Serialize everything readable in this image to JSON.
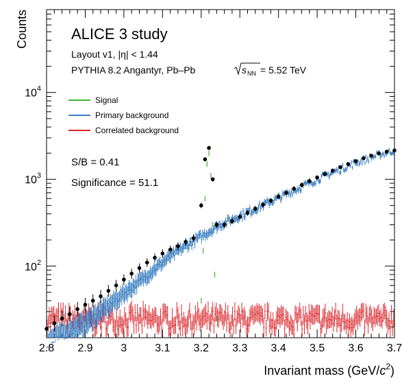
{
  "chart_data": {
    "type": "scatter",
    "x_axis": {
      "title_pre": "Invariant mass (GeV/",
      "title_var": "c",
      "title_exp": "2",
      "title_post": ")",
      "range": [
        2.8,
        3.7
      ],
      "ticks": [
        "2.8",
        "2.9",
        "3",
        "3.1",
        "3.2",
        "3.3",
        "3.4",
        "3.5",
        "3.6",
        "3.7"
      ]
    },
    "y_axis": {
      "title": "Counts",
      "scale": "log",
      "range": [
        15,
        90000
      ],
      "tick_labels": [
        {
          "value": 100,
          "base": "10",
          "exp": "2"
        },
        {
          "value": 1000,
          "base": "10",
          "exp": "3"
        },
        {
          "value": 10000,
          "base": "10",
          "exp": "4"
        }
      ]
    },
    "annotations": {
      "title": "ALICE 3 study",
      "line1": "Layout v1, |η| < 1.44",
      "line2_pre": "PYTHIA 8.2 Angantyr, Pb–Pb ",
      "line2_sqrt_var": "s",
      "line2_sqrt_sub": "NN",
      "line2_post": " = 5.52 TeV",
      "sb": "S/B = 0.41",
      "significance": "Significance = 51.1"
    },
    "legend": [
      {
        "label": "Signal",
        "color": "#3cb132"
      },
      {
        "label": "Primary background",
        "color": "#3a7fc1"
      },
      {
        "label": "Correlated background",
        "color": "#d9262b"
      }
    ],
    "grid": false,
    "legend_position": "top-left",
    "series": [
      {
        "name": "Data",
        "color": "#000000",
        "marker": "circle",
        "x": [
          2.8,
          2.82,
          2.84,
          2.86,
          2.88,
          2.9,
          2.92,
          2.94,
          2.96,
          2.98,
          3.0,
          3.02,
          3.04,
          3.06,
          3.08,
          3.1,
          3.12,
          3.14,
          3.16,
          3.18,
          3.2,
          3.21,
          3.22,
          3.23,
          3.24,
          3.26,
          3.28,
          3.3,
          3.32,
          3.34,
          3.36,
          3.38,
          3.4,
          3.42,
          3.44,
          3.46,
          3.48,
          3.5,
          3.52,
          3.54,
          3.56,
          3.58,
          3.6,
          3.62,
          3.64,
          3.66,
          3.68,
          3.7
        ],
        "y": [
          19,
          22,
          25,
          28,
          32,
          36,
          40,
          45,
          52,
          60,
          70,
          82,
          95,
          110,
          125,
          140,
          155,
          170,
          190,
          210,
          500,
          1700,
          2300,
          1000,
          300,
          300,
          330,
          370,
          410,
          460,
          510,
          570,
          630,
          700,
          780,
          860,
          950,
          1050,
          1150,
          1260,
          1380,
          1500,
          1620,
          1750,
          1870,
          1980,
          2080,
          2150
        ]
      },
      {
        "name": "Primary background",
        "color": "#3a7fc1",
        "x": [
          2.8,
          2.85,
          2.9,
          2.95,
          3.0,
          3.05,
          3.1,
          3.15,
          3.2,
          3.25,
          3.3,
          3.35,
          3.4,
          3.45,
          3.5,
          3.55,
          3.6,
          3.65,
          3.7
        ],
        "y": [
          12,
          16,
          22,
          32,
          48,
          72,
          110,
          160,
          220,
          300,
          380,
          480,
          610,
          780,
          1000,
          1250,
          1550,
          1850,
          2150
        ]
      },
      {
        "name": "Correlated background",
        "color": "#d9262b",
        "x": [
          2.8,
          2.9,
          3.0,
          3.1,
          3.2,
          3.3,
          3.4,
          3.5,
          3.6,
          3.7
        ],
        "y": [
          24,
          24,
          24,
          24,
          24,
          24,
          24,
          24,
          24,
          24
        ]
      },
      {
        "name": "Signal",
        "color": "#3cb132",
        "x": [
          3.2,
          3.205,
          3.21,
          3.215,
          3.22,
          3.225,
          3.23,
          3.235,
          3.24
        ],
        "y": [
          40,
          150,
          600,
          1500,
          2000,
          1100,
          300,
          80,
          25
        ]
      }
    ]
  }
}
